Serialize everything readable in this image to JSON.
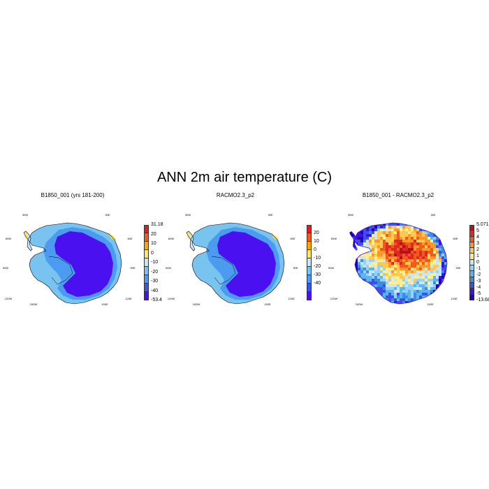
{
  "title": "ANN 2m air temperature (C)",
  "longitude_labels": [
    "30W",
    "30E",
    "60W",
    "60E",
    "90W",
    "90E",
    "120W",
    "120E",
    "150W",
    "150E",
    "180"
  ],
  "panels": [
    {
      "title": "B1850_001 (yrs 181-200)",
      "colorbar": {
        "colors": [
          "#e01e1e",
          "#f05a1e",
          "#ffa500",
          "#ffe66e",
          "#c8e6fa",
          "#78c3f0",
          "#4b9bf0",
          "#3c55e6",
          "#4a10f0"
        ],
        "labels": [
          "31.18",
          "20",
          "10",
          "0",
          "-10",
          "-20",
          "-30",
          "-40",
          "-53.4"
        ],
        "label_style": "edges"
      },
      "map_style": "cold"
    },
    {
      "title": "RACMO2.3_p2",
      "colorbar": {
        "colors": [
          "#e01e1e",
          "#f05a1e",
          "#ffa500",
          "#ffe66e",
          "#c8e6fa",
          "#78c3f0",
          "#4b9bf0",
          "#3c55e6",
          "#4a10f0"
        ],
        "labels": [
          "20",
          "10",
          "0",
          "-10",
          "-20",
          "-30",
          "-40"
        ],
        "label_style": "interior"
      },
      "map_style": "cold"
    },
    {
      "title": "B1850_001 - RACMO2.3_p2",
      "colorbar": {
        "colors": [
          "#b41414",
          "#e02828",
          "#f05a1e",
          "#ff9628",
          "#ffc850",
          "#fff08c",
          "#c8e6fa",
          "#96d2f5",
          "#5ab4f0",
          "#3c8ce6",
          "#3c50e6",
          "#3c14e6",
          "#2800b4"
        ],
        "labels": [
          "5.071",
          "5",
          "4",
          "3",
          "2",
          "1",
          "0",
          "-1",
          "-2",
          "-3",
          "-4",
          "-5",
          "-13.68"
        ],
        "label_style": "edges"
      },
      "map_style": "diff"
    }
  ]
}
